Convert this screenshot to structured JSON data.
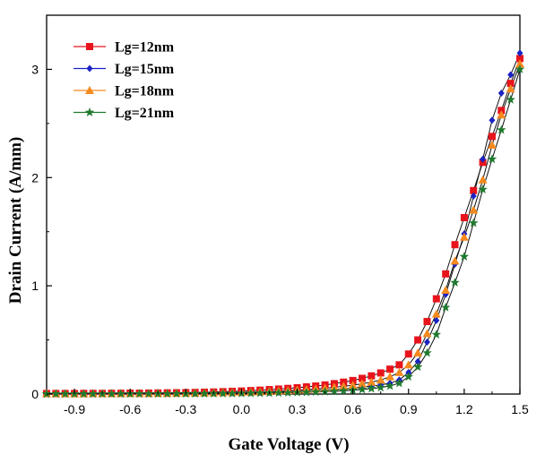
{
  "chart_data": {
    "type": "line",
    "title": "",
    "xlabel": "Gate Voltage (V)",
    "ylabel": "Drain Current (A/mm)",
    "xlim": [
      -1.05,
      1.5
    ],
    "ylim": [
      0,
      3.5
    ],
    "xticks": [
      -0.9,
      -0.6,
      -0.3,
      0.0,
      0.3,
      0.6,
      0.9,
      1.2,
      1.5
    ],
    "xtick_labels": [
      "-0.9",
      "-0.6",
      "-0.3",
      "0.0",
      "0.3",
      "0.6",
      "0.9",
      "1.2",
      "1.5"
    ],
    "yticks": [
      0,
      1,
      2,
      3
    ],
    "ytick_labels": [
      "0",
      "1",
      "2",
      "3"
    ],
    "grid": false,
    "legend_position": "top-left",
    "x": [
      -1.05,
      -1.0,
      -0.95,
      -0.9,
      -0.85,
      -0.8,
      -0.75,
      -0.7,
      -0.65,
      -0.6,
      -0.55,
      -0.5,
      -0.45,
      -0.4,
      -0.35,
      -0.3,
      -0.25,
      -0.2,
      -0.15,
      -0.1,
      -0.05,
      0.0,
      0.05,
      0.1,
      0.15,
      0.2,
      0.25,
      0.3,
      0.35,
      0.4,
      0.45,
      0.5,
      0.55,
      0.6,
      0.65,
      0.7,
      0.75,
      0.8,
      0.85,
      0.9,
      0.95,
      1.0,
      1.05,
      1.1,
      1.15,
      1.2,
      1.25,
      1.3,
      1.35,
      1.4,
      1.45,
      1.5
    ],
    "series": [
      {
        "name": "Lg=12nm",
        "color": "#e8141c",
        "marker": "square",
        "values": [
          0.005,
          0.005,
          0.005,
          0.005,
          0.006,
          0.006,
          0.006,
          0.007,
          0.007,
          0.008,
          0.008,
          0.009,
          0.01,
          0.011,
          0.012,
          0.013,
          0.015,
          0.017,
          0.019,
          0.022,
          0.025,
          0.028,
          0.032,
          0.036,
          0.041,
          0.046,
          0.052,
          0.058,
          0.066,
          0.074,
          0.084,
          0.096,
          0.11,
          0.125,
          0.145,
          0.168,
          0.195,
          0.23,
          0.27,
          0.37,
          0.5,
          0.67,
          0.88,
          1.11,
          1.38,
          1.63,
          1.88,
          2.14,
          2.38,
          2.62,
          2.87,
          3.1
        ]
      },
      {
        "name": "Lg=15nm",
        "color": "#1a22c4",
        "marker": "diamond",
        "values": [
          0.002,
          0.002,
          0.002,
          0.002,
          0.002,
          0.002,
          0.003,
          0.003,
          0.003,
          0.003,
          0.003,
          0.004,
          0.004,
          0.004,
          0.005,
          0.005,
          0.006,
          0.007,
          0.008,
          0.009,
          0.01,
          0.011,
          0.013,
          0.015,
          0.017,
          0.019,
          0.022,
          0.025,
          0.029,
          0.033,
          0.037,
          0.042,
          0.048,
          0.055,
          0.063,
          0.073,
          0.085,
          0.1,
          0.13,
          0.2,
          0.3,
          0.48,
          0.68,
          0.92,
          1.2,
          1.48,
          1.83,
          2.17,
          2.53,
          2.78,
          2.95,
          3.15
        ]
      },
      {
        "name": "Lg=18nm",
        "color": "#f58a1f",
        "marker": "triangle",
        "values": [
          0.003,
          0.003,
          0.003,
          0.003,
          0.003,
          0.004,
          0.004,
          0.004,
          0.004,
          0.005,
          0.005,
          0.005,
          0.006,
          0.006,
          0.007,
          0.008,
          0.009,
          0.01,
          0.011,
          0.013,
          0.014,
          0.016,
          0.019,
          0.021,
          0.024,
          0.028,
          0.032,
          0.036,
          0.041,
          0.047,
          0.054,
          0.062,
          0.071,
          0.082,
          0.095,
          0.11,
          0.13,
          0.16,
          0.2,
          0.27,
          0.38,
          0.56,
          0.74,
          0.96,
          1.23,
          1.45,
          1.7,
          1.98,
          2.3,
          2.58,
          2.82,
          3.05
        ]
      },
      {
        "name": "Lg=21nm",
        "color": "#1f7a2e",
        "marker": "star",
        "values": [
          0.001,
          0.001,
          0.001,
          0.001,
          0.001,
          0.001,
          0.001,
          0.001,
          0.002,
          0.002,
          0.002,
          0.002,
          0.002,
          0.002,
          0.003,
          0.003,
          0.003,
          0.004,
          0.004,
          0.005,
          0.005,
          0.006,
          0.007,
          0.008,
          0.009,
          0.011,
          0.012,
          0.014,
          0.016,
          0.019,
          0.022,
          0.025,
          0.03,
          0.035,
          0.042,
          0.05,
          0.06,
          0.075,
          0.1,
          0.16,
          0.25,
          0.38,
          0.55,
          0.8,
          1.03,
          1.27,
          1.58,
          1.89,
          2.17,
          2.44,
          2.72,
          3.0
        ]
      }
    ]
  }
}
